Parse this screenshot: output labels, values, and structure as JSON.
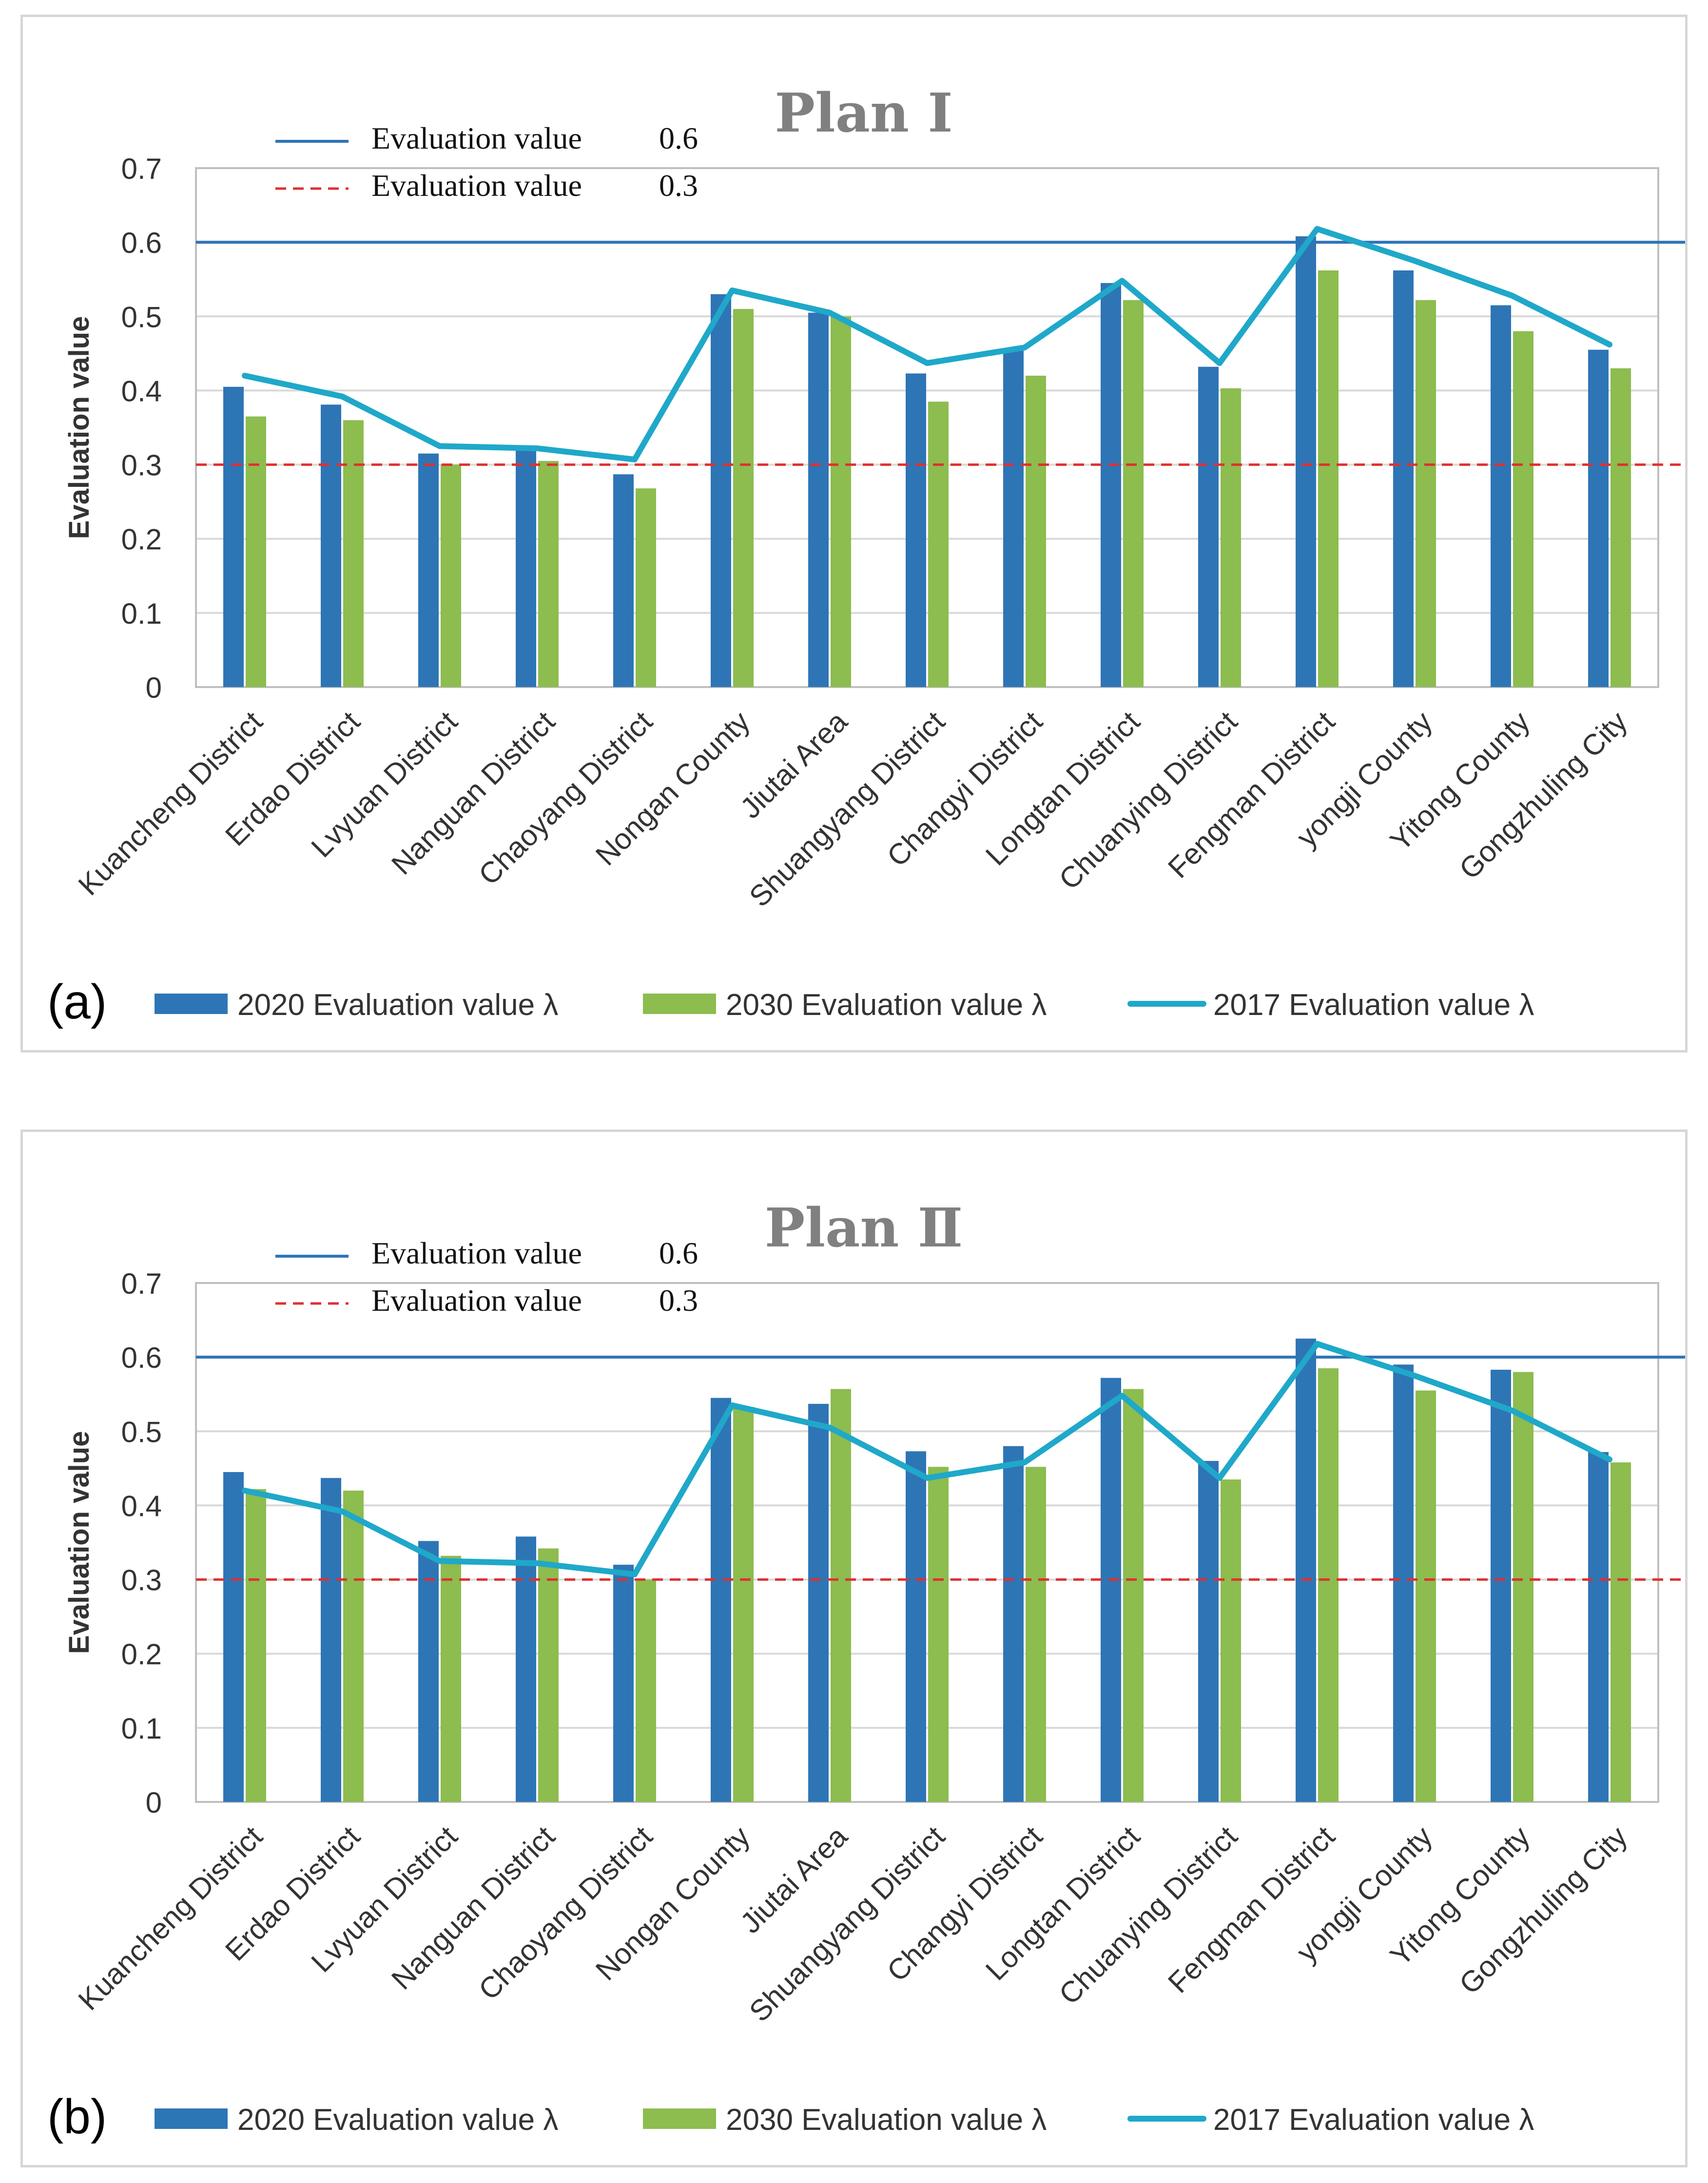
{
  "colors": {
    "bar2020": "#2e75b6",
    "bar2030": "#8dbc4f",
    "line2017": "#1fa8c9",
    "ref06": "#2e75b6",
    "ref03": "#e03030",
    "grid": "#d9d9d9"
  },
  "chart_data": [
    {
      "type": "bar",
      "panel_label": "(a)",
      "title": "Plan Ⅰ",
      "xlabel": "",
      "ylabel": "Evaluation value",
      "ylim": [
        0,
        0.7
      ],
      "yticks": [
        "0",
        "0.1",
        "0.2",
        "0.3",
        "0.4",
        "0.5",
        "0.6",
        "0.7"
      ],
      "categories": [
        "Kuancheng District",
        "Erdao District",
        "Lvyuan District",
        "Nanguan District",
        "Chaoyang District",
        "Nongan County",
        "Jiutai Area",
        "Shuangyang District",
        "Changyi District",
        "Longtan District",
        "Chuanying District",
        "Fengman District",
        "yongji County",
        "Yitong County",
        "Gongzhuling City"
      ],
      "series": [
        {
          "name": "2020 Evaluation value λ",
          "type": "bar",
          "values": [
            0.405,
            0.381,
            0.315,
            0.32,
            0.287,
            0.53,
            0.505,
            0.423,
            0.455,
            0.545,
            0.432,
            0.608,
            0.562,
            0.515,
            0.455
          ]
        },
        {
          "name": "2030 Evaluation value λ",
          "type": "bar",
          "values": [
            0.365,
            0.36,
            0.3,
            0.305,
            0.268,
            0.51,
            0.5,
            0.385,
            0.42,
            0.522,
            0.403,
            0.562,
            0.522,
            0.48,
            0.43
          ]
        },
        {
          "name": "2017 Evaluation value λ",
          "type": "line",
          "values": [
            0.42,
            0.392,
            0.325,
            0.322,
            0.307,
            0.535,
            0.505,
            0.437,
            0.458,
            0.548,
            0.437,
            0.618,
            0.575,
            0.528,
            0.462
          ]
        }
      ],
      "reference_lines": [
        {
          "label": "Evaluation value 0.6",
          "name_text": "Evaluation  value",
          "value_text": "0.6",
          "value": 0.6,
          "style": "solid"
        },
        {
          "label": "Evaluation value 0.3",
          "name_text": "Evaluation  value",
          "value_text": "0.3",
          "value": 0.3,
          "style": "dashed"
        }
      ]
    },
    {
      "type": "bar",
      "panel_label": "(b)",
      "title": "Plan Ⅱ",
      "xlabel": "",
      "ylabel": "Evaluation value",
      "ylim": [
        0,
        0.7
      ],
      "yticks": [
        "0",
        "0.1",
        "0.2",
        "0.3",
        "0.4",
        "0.5",
        "0.6",
        "0.7"
      ],
      "categories": [
        "Kuancheng District",
        "Erdao District",
        "Lvyuan District",
        "Nanguan District",
        "Chaoyang District",
        "Nongan County",
        "Jiutai Area",
        "Shuangyang District",
        "Changyi District",
        "Longtan District",
        "Chuanying District",
        "Fengman District",
        "yongji County",
        "Yitong County",
        "Gongzhuling City"
      ],
      "series": [
        {
          "name": "2020 Evaluation value λ",
          "type": "bar",
          "values": [
            0.445,
            0.437,
            0.352,
            0.358,
            0.32,
            0.545,
            0.537,
            0.473,
            0.48,
            0.572,
            0.46,
            0.625,
            0.59,
            0.583,
            0.472
          ]
        },
        {
          "name": "2030 Evaluation value λ",
          "type": "bar",
          "values": [
            0.422,
            0.42,
            0.332,
            0.342,
            0.3,
            0.533,
            0.557,
            0.452,
            0.452,
            0.557,
            0.435,
            0.585,
            0.555,
            0.58,
            0.458
          ]
        },
        {
          "name": "2017 Evaluation value λ",
          "type": "line",
          "values": [
            0.42,
            0.392,
            0.325,
            0.322,
            0.307,
            0.535,
            0.505,
            0.437,
            0.458,
            0.548,
            0.437,
            0.618,
            0.575,
            0.528,
            0.462
          ]
        }
      ],
      "reference_lines": [
        {
          "label": "Evaluation value 0.6",
          "name_text": "Evaluation  value",
          "value_text": "0.6",
          "value": 0.6,
          "style": "solid"
        },
        {
          "label": "Evaluation value 0.3",
          "name_text": "Evaluation  value",
          "value_text": "0.3",
          "value": 0.3,
          "style": "dashed"
        }
      ]
    }
  ]
}
